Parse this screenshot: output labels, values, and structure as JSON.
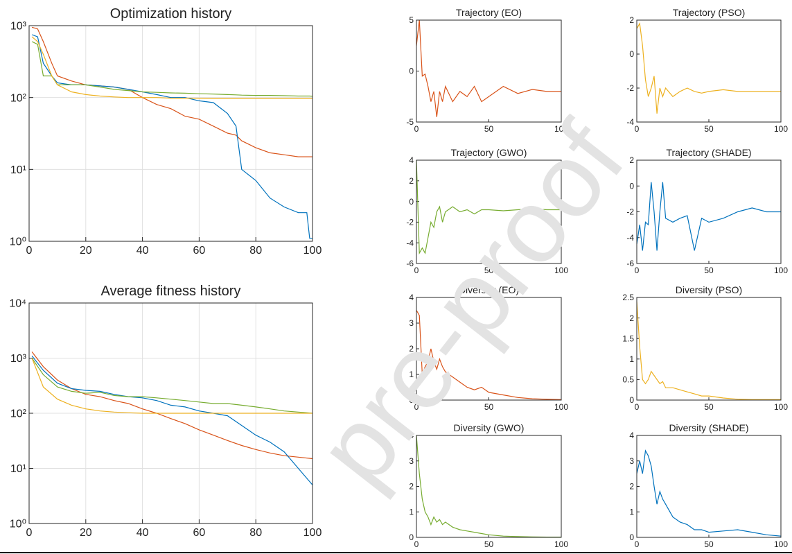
{
  "watermark": "pre-proof",
  "chart_data": [
    {
      "type": "line",
      "title": "Optimization history",
      "yscale": "log",
      "grid": true,
      "xlim": [
        0,
        100
      ],
      "xticks": [
        0,
        20,
        40,
        60,
        80,
        100
      ],
      "ylim": [
        1,
        1000
      ],
      "yticks": [
        {
          "value": 1,
          "label": "10⁰"
        },
        {
          "value": 10,
          "label": "10¹"
        },
        {
          "value": 100,
          "label": "10²"
        },
        {
          "value": 1000,
          "label": "10³"
        }
      ],
      "x": [
        1,
        3,
        5,
        8,
        10,
        15,
        20,
        25,
        30,
        35,
        40,
        45,
        50,
        55,
        60,
        65,
        70,
        73,
        75,
        80,
        85,
        90,
        95,
        98,
        99,
        100
      ],
      "series": [
        {
          "color": "#D95319",
          "values": [
            950,
            900,
            600,
            300,
            200,
            170,
            150,
            145,
            140,
            130,
            100,
            80,
            70,
            55,
            50,
            40,
            32,
            30,
            25,
            20,
            17,
            16,
            15,
            15,
            15,
            15
          ]
        },
        {
          "color": "#0072BD",
          "values": [
            750,
            700,
            300,
            200,
            160,
            150,
            150,
            145,
            140,
            130,
            120,
            110,
            100,
            100,
            90,
            85,
            60,
            40,
            10,
            7,
            4,
            3,
            2.5,
            2.5,
            1.1,
            1.1
          ]
        },
        {
          "color": "#77AC30",
          "values": [
            600,
            550,
            200,
            200,
            150,
            150,
            150,
            140,
            130,
            125,
            120,
            118,
            116,
            115,
            113,
            112,
            110,
            109,
            108,
            107,
            107,
            106,
            105,
            105,
            105,
            104
          ]
        },
        {
          "color": "#EDB120",
          "values": [
            700,
            600,
            400,
            200,
            150,
            120,
            110,
            105,
            102,
            100,
            100,
            100,
            98,
            98,
            98,
            97,
            97,
            97,
            97,
            97,
            97,
            97,
            97,
            97,
            97,
            97
          ]
        }
      ]
    },
    {
      "type": "line",
      "title": "Average fitness history",
      "yscale": "log",
      "grid": true,
      "xlim": [
        0,
        100
      ],
      "xticks": [
        0,
        20,
        40,
        60,
        80,
        100
      ],
      "ylim": [
        1,
        10000
      ],
      "yticks": [
        {
          "value": 1,
          "label": "10⁰"
        },
        {
          "value": 10,
          "label": "10¹"
        },
        {
          "value": 100,
          "label": "10²"
        },
        {
          "value": 1000,
          "label": "10³"
        },
        {
          "value": 10000,
          "label": "10⁴"
        }
      ],
      "x": [
        1,
        5,
        10,
        15,
        20,
        25,
        30,
        35,
        40,
        45,
        50,
        55,
        60,
        65,
        70,
        75,
        80,
        85,
        90,
        95,
        100
      ],
      "series": [
        {
          "color": "#D95319",
          "values": [
            1300,
            700,
            400,
            280,
            220,
            200,
            170,
            150,
            120,
            100,
            80,
            65,
            50,
            40,
            32,
            26,
            22,
            19,
            17,
            16,
            15
          ]
        },
        {
          "color": "#0072BD",
          "values": [
            1100,
            600,
            350,
            280,
            260,
            250,
            220,
            200,
            190,
            170,
            140,
            130,
            110,
            100,
            90,
            60,
            40,
            30,
            20,
            10,
            5
          ]
        },
        {
          "color": "#77AC30",
          "values": [
            1000,
            500,
            300,
            250,
            230,
            240,
            210,
            200,
            200,
            190,
            180,
            170,
            160,
            150,
            150,
            140,
            130,
            120,
            110,
            105,
            100
          ]
        },
        {
          "color": "#EDB120",
          "values": [
            1000,
            300,
            180,
            140,
            120,
            110,
            105,
            102,
            100,
            100,
            100,
            100,
            100,
            100,
            100,
            100,
            100,
            100,
            100,
            100,
            100
          ]
        }
      ]
    },
    {
      "type": "line",
      "title": "Trajectory (EO)",
      "xlim": [
        0,
        100
      ],
      "xticks": [
        0,
        50,
        100
      ],
      "ylim": [
        -5,
        5
      ],
      "yticks": [
        -5,
        0,
        5
      ],
      "x": [
        0,
        2,
        4,
        6,
        8,
        10,
        12,
        14,
        16,
        18,
        20,
        25,
        30,
        35,
        40,
        45,
        50,
        60,
        70,
        80,
        90,
        100
      ],
      "series": [
        {
          "color": "#D95319",
          "values": [
            2.5,
            5,
            -0.5,
            -0.3,
            -1.5,
            -3,
            -2,
            -4.5,
            -2,
            -3,
            -1.5,
            -3,
            -2,
            -2.5,
            -1.5,
            -3,
            -2.5,
            -1.5,
            -2.2,
            -1.8,
            -2,
            -2
          ]
        }
      ]
    },
    {
      "type": "line",
      "title": "Trajectory (PSO)",
      "xlim": [
        0,
        100
      ],
      "xticks": [
        0,
        50,
        100
      ],
      "ylim": [
        -4,
        2
      ],
      "yticks": [
        -4,
        -2,
        0,
        2
      ],
      "x": [
        0,
        2,
        4,
        6,
        8,
        10,
        12,
        14,
        16,
        18,
        20,
        25,
        30,
        35,
        40,
        45,
        50,
        60,
        70,
        80,
        90,
        100
      ],
      "series": [
        {
          "color": "#EDB120",
          "values": [
            1.5,
            1.8,
            0.5,
            -1.5,
            -2.5,
            -2,
            -1.3,
            -3.5,
            -2,
            -2.5,
            -2,
            -2.5,
            -2.2,
            -2,
            -2.2,
            -2.3,
            -2.2,
            -2.1,
            -2.2,
            -2.2,
            -2.2,
            -2.2
          ]
        }
      ]
    },
    {
      "type": "line",
      "title": "Trajectory (GWO)",
      "xlim": [
        0,
        100
      ],
      "xticks": [
        0,
        50,
        100
      ],
      "ylim": [
        -6,
        4
      ],
      "yticks": [
        -6,
        -4,
        -2,
        0,
        2,
        4
      ],
      "x": [
        0,
        2,
        4,
        6,
        8,
        10,
        12,
        14,
        16,
        18,
        20,
        25,
        30,
        35,
        40,
        45,
        50,
        60,
        70,
        80,
        90,
        100
      ],
      "series": [
        {
          "color": "#77AC30",
          "values": [
            4,
            -5,
            -4.5,
            -5,
            -3.5,
            -2,
            -2.5,
            -1,
            -0.5,
            -2,
            -1,
            -0.5,
            -1,
            -0.8,
            -1.2,
            -0.8,
            -0.8,
            -0.9,
            -0.8,
            -0.7,
            -0.8,
            -0.8
          ]
        }
      ]
    },
    {
      "type": "line",
      "title": "Trajectory (SHADE)",
      "xlim": [
        0,
        100
      ],
      "xticks": [
        0,
        50,
        100
      ],
      "ylim": [
        -6,
        2
      ],
      "yticks": [
        -6,
        -4,
        -2,
        0,
        2
      ],
      "x": [
        0,
        2,
        4,
        6,
        8,
        10,
        12,
        14,
        16,
        18,
        20,
        25,
        30,
        35,
        40,
        45,
        50,
        60,
        70,
        80,
        90,
        100
      ],
      "series": [
        {
          "color": "#0072BD",
          "values": [
            -4.5,
            -3,
            -5,
            -2.8,
            -3,
            0.3,
            -2,
            -5,
            -2,
            0.3,
            -2.5,
            -2.8,
            -2.5,
            -2.3,
            -5,
            -2.5,
            -2.8,
            -2.5,
            -2,
            -1.7,
            -2,
            -2
          ]
        }
      ]
    },
    {
      "type": "line",
      "title": "Diversity (EO)",
      "xlim": [
        0,
        100
      ],
      "xticks": [
        0,
        50,
        100
      ],
      "ylim": [
        0,
        4
      ],
      "yticks": [
        0,
        1,
        2,
        3,
        4
      ],
      "x": [
        0,
        2,
        4,
        6,
        8,
        10,
        12,
        14,
        16,
        18,
        20,
        25,
        30,
        35,
        40,
        45,
        50,
        60,
        70,
        80,
        90,
        100
      ],
      "series": [
        {
          "color": "#D95319",
          "values": [
            3.5,
            3.3,
            1,
            1.3,
            1.5,
            2,
            1.5,
            1.2,
            1.6,
            1.3,
            1.1,
            0.9,
            0.7,
            0.5,
            0.4,
            0.5,
            0.3,
            0.2,
            0.1,
            0.05,
            0.03,
            0.02
          ]
        }
      ]
    },
    {
      "type": "line",
      "title": "Diversity (PSO)",
      "xlim": [
        0,
        100
      ],
      "xticks": [
        0,
        50,
        100
      ],
      "ylim": [
        0,
        2.5
      ],
      "yticks": [
        0,
        0.5,
        1,
        1.5,
        2,
        2.5
      ],
      "x": [
        0,
        2,
        4,
        6,
        8,
        10,
        12,
        14,
        16,
        18,
        20,
        25,
        30,
        35,
        40,
        45,
        50,
        60,
        70,
        80,
        90,
        100
      ],
      "series": [
        {
          "color": "#EDB120",
          "values": [
            2.4,
            1.3,
            0.5,
            0.4,
            0.5,
            0.7,
            0.6,
            0.5,
            0.4,
            0.45,
            0.3,
            0.3,
            0.25,
            0.2,
            0.15,
            0.1,
            0.1,
            0.05,
            0.02,
            0.01,
            0.01,
            0.01
          ]
        }
      ]
    },
    {
      "type": "line",
      "title": "Diversity (GWO)",
      "xlim": [
        0,
        100
      ],
      "xticks": [
        0,
        50,
        100
      ],
      "ylim": [
        0,
        4
      ],
      "yticks": [
        0,
        1,
        2,
        3,
        4
      ],
      "x": [
        0,
        2,
        4,
        6,
        8,
        10,
        12,
        14,
        16,
        18,
        20,
        25,
        30,
        35,
        40,
        45,
        50,
        60,
        70,
        80,
        90,
        100
      ],
      "series": [
        {
          "color": "#77AC30",
          "values": [
            4,
            2.5,
            1.5,
            1,
            0.8,
            0.5,
            0.8,
            0.6,
            0.7,
            0.5,
            0.6,
            0.4,
            0.3,
            0.25,
            0.2,
            0.15,
            0.1,
            0.05,
            0.03,
            0.02,
            0.01,
            0.01
          ]
        }
      ]
    },
    {
      "type": "line",
      "title": "Diversity (SHADE)",
      "xlim": [
        0,
        100
      ],
      "xticks": [
        0,
        50,
        100
      ],
      "ylim": [
        0,
        4
      ],
      "yticks": [
        0,
        1,
        2,
        3,
        4
      ],
      "x": [
        0,
        2,
        4,
        6,
        8,
        10,
        12,
        14,
        16,
        18,
        20,
        25,
        30,
        35,
        40,
        45,
        50,
        60,
        70,
        80,
        90,
        100
      ],
      "series": [
        {
          "color": "#0072BD",
          "values": [
            2.5,
            3,
            2.5,
            3.4,
            3.2,
            2.8,
            2,
            1.3,
            1.8,
            1.5,
            1.3,
            0.8,
            0.6,
            0.5,
            0.3,
            0.3,
            0.2,
            0.25,
            0.3,
            0.2,
            0.1,
            0.05
          ]
        }
      ]
    }
  ]
}
